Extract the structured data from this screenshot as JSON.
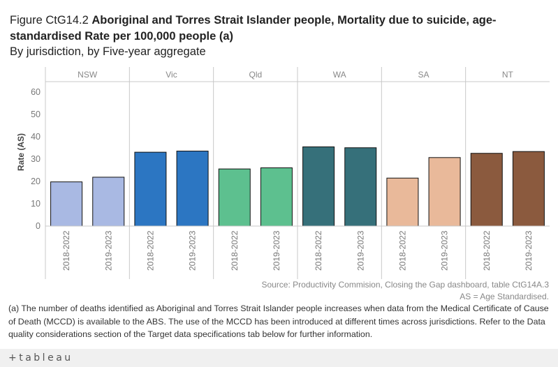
{
  "title": {
    "prefix": "Figure CtG14.2 ",
    "main": "Aboriginal and Torres Strait Islander people, Mortality due to suicide, age-standardised Rate per 100,000 people (a)"
  },
  "subtitle": "By jurisdiction, by Five-year aggregate",
  "source_line1": "Source: Productivity Commision, Closing the Gap dashboard, table CtG14A.3",
  "source_line2": "AS = Age Standardised.",
  "footnote": "(a) The number of deaths identified as Aboriginal and Torres Strait Islander people increases when data from the Medical Certificate of Cause of Death (MCCD) is available to the ABS. The use of the MCCD has been introduced at different times across jurisdictions. Refer to the Data quality considerations section of the Target data specifications tab below for further information.",
  "footer": {
    "logo_text": "+tableau"
  },
  "chart_data": {
    "type": "bar",
    "ylabel": "Rate (AS)",
    "ylim": [
      0,
      63
    ],
    "yticks": [
      0,
      10,
      20,
      30,
      40,
      50,
      60
    ],
    "grid": false,
    "categories": [
      "2018-2022",
      "2019-2023"
    ],
    "panels": [
      {
        "name": "NSW",
        "color": "#a9b9e3",
        "values": [
          19.8,
          21.9
        ]
      },
      {
        "name": "Vic",
        "color": "#2c76c2",
        "values": [
          33.1,
          33.6
        ]
      },
      {
        "name": "Qld",
        "color": "#5dc08f",
        "values": [
          25.6,
          26.1
        ]
      },
      {
        "name": "WA",
        "color": "#36707a",
        "values": [
          35.5,
          35.1
        ]
      },
      {
        "name": "SA",
        "color": "#e9b99a",
        "values": [
          21.5,
          30.7
        ]
      },
      {
        "name": "NT",
        "color": "#8b5a3e",
        "values": [
          32.6,
          33.4
        ]
      }
    ]
  }
}
